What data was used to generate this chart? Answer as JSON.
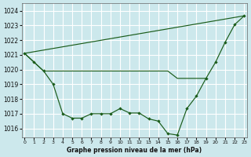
{
  "xlabel": "Graphe pression niveau de la mer (hPa)",
  "background_color": "#cce8ec",
  "grid_color": "#ffffff",
  "line_color": "#1a5c1a",
  "ylim": [
    1015.4,
    1024.5
  ],
  "xlim": [
    -0.3,
    23.3
  ],
  "yticks": [
    1016,
    1017,
    1018,
    1019,
    1020,
    1021,
    1022,
    1023,
    1024
  ],
  "xticks": [
    0,
    1,
    2,
    3,
    4,
    5,
    6,
    7,
    8,
    9,
    10,
    11,
    12,
    13,
    14,
    15,
    16,
    17,
    18,
    19,
    20,
    21,
    22,
    23
  ],
  "line_diagonal": {
    "x": [
      0,
      23
    ],
    "y": [
      1021.1,
      1023.65
    ]
  },
  "line_flat": {
    "x": [
      0,
      2,
      3,
      10,
      11,
      12,
      13,
      14,
      15,
      16,
      17,
      18,
      19
    ],
    "y": [
      1021.1,
      1019.9,
      1019.9,
      1019.9,
      1019.9,
      1019.9,
      1019.9,
      1019.9,
      1019.9,
      1019.4,
      1019.4,
      1019.4,
      1019.4
    ]
  },
  "line_main": {
    "x": [
      0,
      1,
      2,
      3,
      4,
      5,
      6,
      7,
      8,
      9,
      10,
      11,
      12,
      13,
      14,
      15,
      16,
      17,
      18,
      19,
      20,
      21,
      22,
      23
    ],
    "y": [
      1021.1,
      1020.5,
      1019.9,
      1019.0,
      1017.0,
      1016.7,
      1016.7,
      1017.0,
      1017.0,
      1017.0,
      1017.35,
      1017.05,
      1017.05,
      1016.65,
      1016.5,
      1015.65,
      1015.55,
      1017.35,
      1018.2,
      1019.4,
      1020.5,
      1021.85,
      1023.05,
      1023.65
    ]
  }
}
